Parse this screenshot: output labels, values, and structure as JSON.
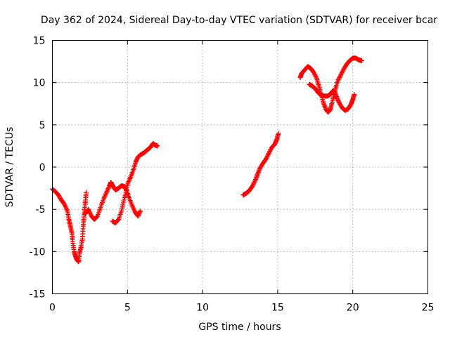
{
  "chart_data": {
    "type": "scatter",
    "title": "Day 362 of 2024, Sidereal Day-to-day VTEC variation (SDTVAR) for receiver bcar",
    "xlabel": "GPS time / hours",
    "ylabel": "SDTVAR / TECUs",
    "xlim": [
      0,
      25
    ],
    "ylim": [
      -15,
      15
    ],
    "xticks": [
      0,
      5,
      10,
      15,
      20,
      25
    ],
    "yticks": [
      -15,
      -10,
      -5,
      0,
      5,
      10,
      15
    ],
    "grid": true,
    "marker": "plus",
    "color": "#ff0000",
    "segments": [
      [
        [
          0.0,
          -2.6
        ],
        [
          0.2,
          -2.9
        ],
        [
          0.4,
          -3.3
        ],
        [
          0.6,
          -3.9
        ],
        [
          0.8,
          -4.4
        ],
        [
          1.0,
          -5.2
        ],
        [
          1.1,
          -6.2
        ],
        [
          1.2,
          -7.0
        ],
        [
          1.3,
          -7.8
        ],
        [
          1.35,
          -8.8
        ],
        [
          1.45,
          -10.0
        ],
        [
          1.55,
          -10.6
        ],
        [
          1.65,
          -11.0
        ],
        [
          1.75,
          -11.2
        ],
        [
          1.8,
          -10.2
        ],
        [
          1.9,
          -9.5
        ],
        [
          2.0,
          -8.5
        ],
        [
          2.05,
          -7.0
        ],
        [
          2.1,
          -6.0
        ],
        [
          2.15,
          -5.0
        ],
        [
          2.2,
          -4.0
        ],
        [
          2.25,
          -3.0
        ]
      ],
      [
        [
          2.2,
          -5.5
        ],
        [
          2.4,
          -5.0
        ],
        [
          2.6,
          -5.8
        ],
        [
          2.8,
          -6.2
        ],
        [
          3.0,
          -5.8
        ],
        [
          3.2,
          -4.8
        ],
        [
          3.4,
          -3.8
        ],
        [
          3.6,
          -3.0
        ],
        [
          3.8,
          -2.2
        ],
        [
          3.9,
          -1.8
        ],
        [
          4.05,
          -2.3
        ],
        [
          4.2,
          -2.7
        ],
        [
          4.4,
          -2.5
        ],
        [
          4.6,
          -2.2
        ],
        [
          4.8,
          -2.3
        ],
        [
          4.95,
          -2.8
        ],
        [
          5.1,
          -3.6
        ],
        [
          5.3,
          -4.5
        ],
        [
          5.5,
          -5.3
        ],
        [
          5.7,
          -5.8
        ],
        [
          5.85,
          -5.2
        ]
      ],
      [
        [
          4.0,
          -6.4
        ],
        [
          4.2,
          -6.6
        ],
        [
          4.4,
          -6.2
        ],
        [
          4.6,
          -5.2
        ],
        [
          4.75,
          -4.0
        ],
        [
          4.9,
          -3.0
        ],
        [
          5.0,
          -2.0
        ],
        [
          5.2,
          -1.2
        ],
        [
          5.4,
          -0.3
        ],
        [
          5.55,
          0.6
        ],
        [
          5.7,
          1.2
        ],
        [
          5.9,
          1.5
        ],
        [
          6.1,
          1.7
        ],
        [
          6.3,
          2.0
        ],
        [
          6.5,
          2.3
        ],
        [
          6.7,
          2.8
        ],
        [
          6.85,
          2.6
        ],
        [
          7.0,
          2.5
        ]
      ],
      [
        [
          12.7,
          -3.3
        ],
        [
          12.9,
          -3.1
        ],
        [
          13.1,
          -2.8
        ],
        [
          13.3,
          -2.3
        ],
        [
          13.5,
          -1.6
        ],
        [
          13.65,
          -0.9
        ],
        [
          13.8,
          -0.2
        ],
        [
          14.0,
          0.4
        ],
        [
          14.2,
          0.9
        ],
        [
          14.4,
          1.6
        ],
        [
          14.6,
          2.3
        ],
        [
          14.8,
          2.7
        ],
        [
          14.95,
          3.3
        ],
        [
          15.05,
          4.0
        ]
      ],
      [
        [
          16.5,
          10.6
        ],
        [
          16.6,
          11.1
        ],
        [
          16.8,
          11.5
        ],
        [
          17.0,
          11.9
        ],
        [
          17.2,
          11.7
        ],
        [
          17.4,
          11.2
        ],
        [
          17.6,
          10.5
        ],
        [
          17.75,
          9.6
        ],
        [
          17.9,
          8.6
        ],
        [
          18.05,
          7.6
        ],
        [
          18.2,
          6.9
        ],
        [
          18.35,
          6.5
        ],
        [
          18.5,
          6.8
        ],
        [
          18.6,
          7.5
        ],
        [
          18.75,
          8.5
        ],
        [
          18.85,
          9.3
        ],
        [
          19.0,
          10.2
        ],
        [
          19.2,
          10.9
        ],
        [
          19.4,
          11.6
        ],
        [
          19.6,
          12.2
        ],
        [
          19.8,
          12.6
        ],
        [
          20.0,
          12.9
        ],
        [
          20.2,
          12.9
        ],
        [
          20.4,
          12.7
        ],
        [
          20.6,
          12.6
        ]
      ],
      [
        [
          17.1,
          9.8
        ],
        [
          17.3,
          9.6
        ],
        [
          17.5,
          9.3
        ],
        [
          17.7,
          8.8
        ],
        [
          17.9,
          8.5
        ],
        [
          18.1,
          8.4
        ],
        [
          18.3,
          8.4
        ],
        [
          18.5,
          8.6
        ],
        [
          18.65,
          9.0
        ],
        [
          18.8,
          8.9
        ],
        [
          18.95,
          8.2
        ],
        [
          19.1,
          7.6
        ],
        [
          19.3,
          7.0
        ],
        [
          19.5,
          6.7
        ],
        [
          19.7,
          6.9
        ],
        [
          19.9,
          7.5
        ],
        [
          20.0,
          8.0
        ],
        [
          20.1,
          8.6
        ]
      ]
    ]
  }
}
